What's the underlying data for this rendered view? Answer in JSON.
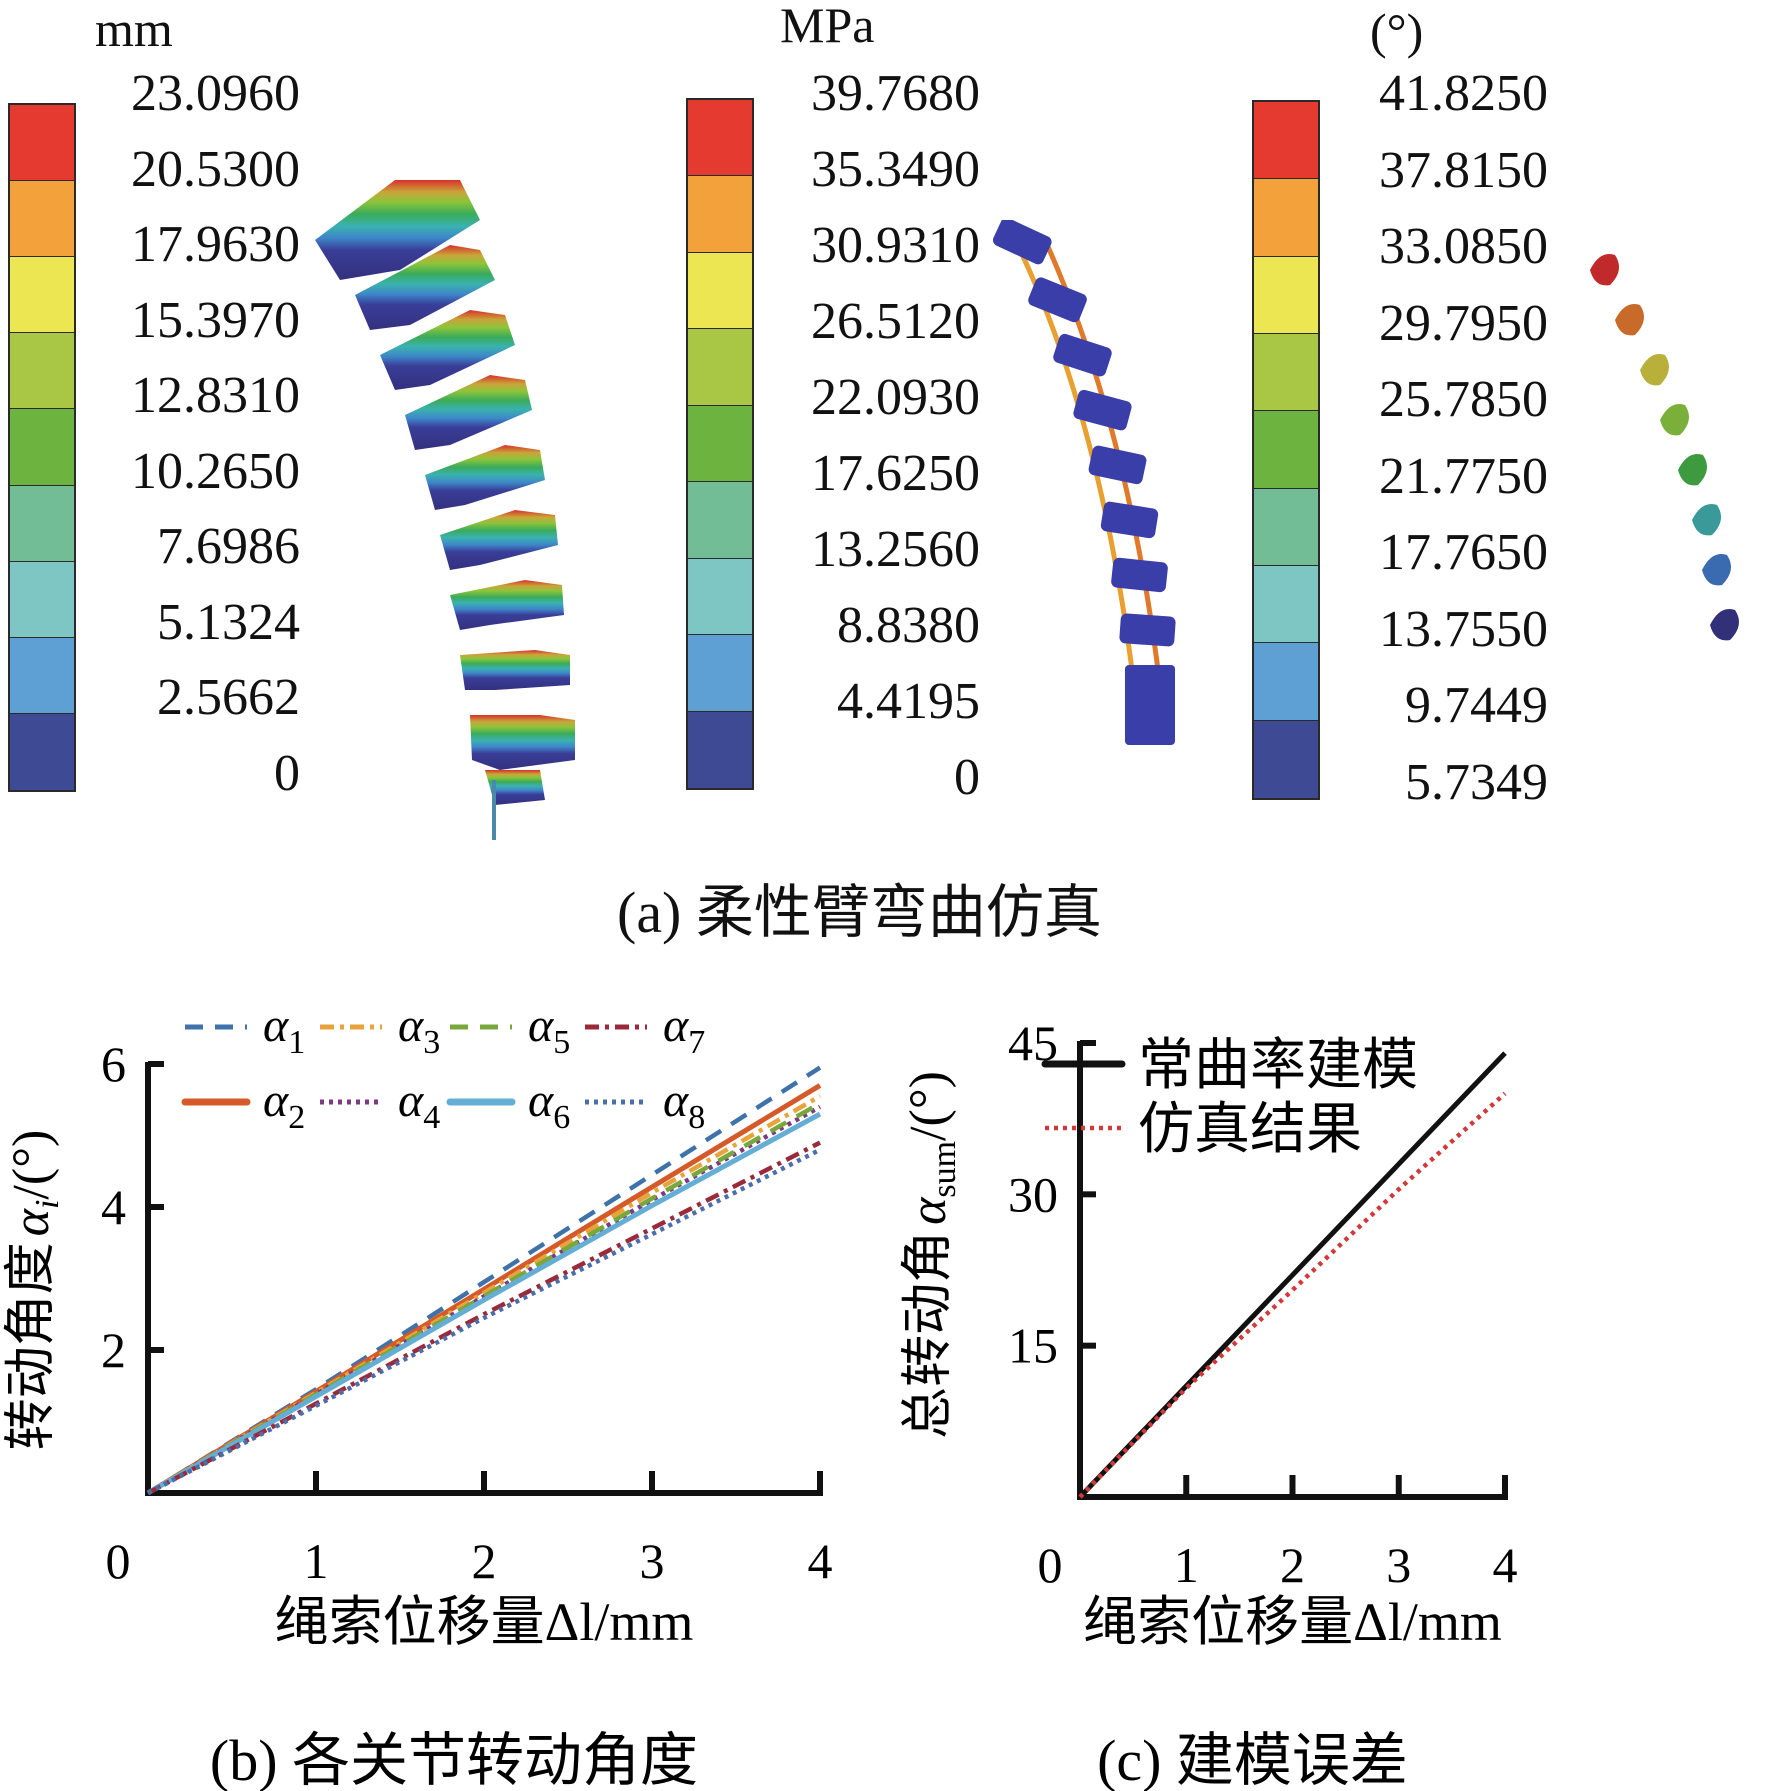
{
  "panel_a": {
    "caption": "(a) 柔性臂弯曲仿真",
    "legends": [
      {
        "unit": "mm",
        "ticks": [
          "23.0960",
          "20.5300",
          "17.9630",
          "15.3970",
          "12.8310",
          "10.2650",
          "7.6986",
          "5.1324",
          "2.5662",
          "0"
        ]
      },
      {
        "unit": "MPa",
        "ticks": [
          "39.7680",
          "35.3490",
          "30.9310",
          "26.5120",
          "22.0930",
          "17.6250",
          "13.2560",
          "8.8380",
          "4.4195",
          "0"
        ]
      },
      {
        "unit": "(°)",
        "ticks": [
          "41.8250",
          "37.8150",
          "33.0850",
          "29.7950",
          "25.7850",
          "21.7750",
          "17.7650",
          "13.7550",
          "9.7449",
          "5.7349"
        ]
      }
    ],
    "band_colors": [
      "#e53a2f",
      "#f2a13b",
      "#ece652",
      "#a9c744",
      "#6db33f",
      "#72bd95",
      "#7dc6c4",
      "#5ea0d3",
      "#3e4a94"
    ]
  },
  "chart_data": [
    {
      "type": "line",
      "title": "(b) 各关节转动角度",
      "xlabel": "绳索位移量Δl/mm",
      "ylabel_prefix": "转动角度",
      "ylabel_symbol": "α",
      "ylabel_sub": "i",
      "ylabel_unit": "/(°)",
      "xlim": [
        0,
        4
      ],
      "ylim": [
        0,
        6
      ],
      "xticks": [
        "0",
        "1",
        "2",
        "3",
        "4"
      ],
      "yticks": [
        "2",
        "4",
        "6"
      ],
      "x": [
        0,
        1,
        2,
        3,
        4
      ],
      "series": [
        {
          "name": "α1",
          "symbol": "α",
          "sub": "1",
          "style": "dashed",
          "color": "#3e72a8",
          "values": [
            0,
            1.45,
            2.95,
            4.45,
            5.95
          ]
        },
        {
          "name": "α2",
          "symbol": "α",
          "sub": "2",
          "style": "solid",
          "color": "#d45a2a",
          "values": [
            0,
            1.42,
            2.85,
            4.28,
            5.7
          ]
        },
        {
          "name": "α3",
          "symbol": "α",
          "sub": "3",
          "style": "dashdot",
          "color": "#e8a33a",
          "values": [
            0,
            1.4,
            2.8,
            4.2,
            5.55
          ]
        },
        {
          "name": "α4",
          "symbol": "α",
          "sub": "4",
          "style": "dotted",
          "color": "#7b3a82",
          "values": [
            0,
            1.38,
            2.75,
            4.1,
            5.4
          ]
        },
        {
          "name": "α5",
          "symbol": "α",
          "sub": "5",
          "style": "dashed",
          "color": "#78a83c",
          "values": [
            0,
            1.38,
            2.75,
            4.12,
            5.45
          ]
        },
        {
          "name": "α6",
          "symbol": "α",
          "sub": "6",
          "style": "solid",
          "color": "#64aed6",
          "values": [
            0,
            1.35,
            2.7,
            4.02,
            5.3
          ]
        },
        {
          "name": "α7",
          "symbol": "α",
          "sub": "7",
          "style": "dashdot",
          "color": "#9a2a3a",
          "values": [
            0,
            1.25,
            2.5,
            3.7,
            4.9
          ]
        },
        {
          "name": "α8",
          "symbol": "α",
          "sub": "8",
          "style": "dotted",
          "color": "#4a6ea8",
          "values": [
            0,
            1.22,
            2.45,
            3.62,
            4.8
          ]
        }
      ],
      "legend_position": "top"
    },
    {
      "type": "line",
      "title": "(c) 建模误差",
      "xlabel": "绳索位移量Δl/mm",
      "ylabel_prefix": "总转动角",
      "ylabel_symbol": "α",
      "ylabel_sub": "sum",
      "ylabel_unit": "/(°)",
      "xlim": [
        0,
        4
      ],
      "ylim": [
        0,
        45
      ],
      "xticks": [
        "0",
        "1",
        "2",
        "3",
        "4"
      ],
      "yticks": [
        "15",
        "30",
        "45"
      ],
      "x": [
        0,
        1,
        2,
        3,
        4
      ],
      "series": [
        {
          "name": "常曲率建模",
          "style": "solid",
          "color": "#111111",
          "values": [
            0,
            11.0,
            22.0,
            33.0,
            44.0
          ]
        },
        {
          "name": "仿真结果",
          "style": "dotted",
          "color": "#d23a3a",
          "values": [
            0,
            10.8,
            20.5,
            30.5,
            40.0
          ]
        }
      ],
      "legend_position": "top-left"
    }
  ]
}
